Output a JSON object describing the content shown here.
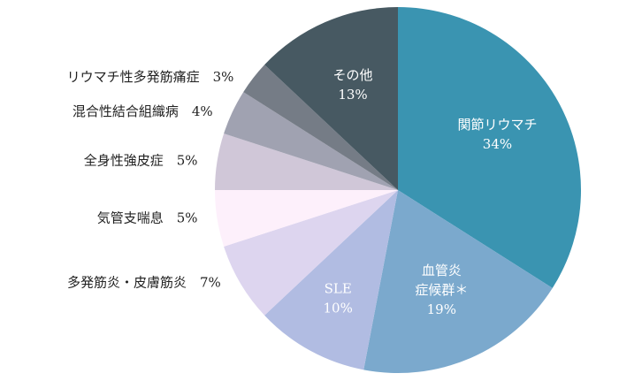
{
  "chart_data": {
    "type": "pie",
    "title": "",
    "slices": [
      {
        "name": "関節リウマチ",
        "name_lines": [
          "関節リウマチ"
        ],
        "value": 34,
        "label": "34%",
        "color": "#3a94b1",
        "position": "inside"
      },
      {
        "name": "血管炎症候群＊",
        "name_lines": [
          "血管炎",
          "症候群＊"
        ],
        "value": 19,
        "label": "19%",
        "color": "#7ba9cd",
        "position": "inside"
      },
      {
        "name": "SLE",
        "name_lines": [
          "SLE"
        ],
        "value": 10,
        "label": "10%",
        "color": "#b1bce2",
        "position": "inside"
      },
      {
        "name": "多発筋炎・皮膚筋炎",
        "name_lines": [
          "多発筋炎・皮膚筋炎"
        ],
        "value": 7,
        "label": "7%",
        "color": "#ddd5ef",
        "position": "outside"
      },
      {
        "name": "気管支喘息",
        "name_lines": [
          "気管支喘息"
        ],
        "value": 5,
        "label": "5%",
        "color": "#fdf0fb",
        "position": "outside"
      },
      {
        "name": "全身性強皮症",
        "name_lines": [
          "全身性強皮症"
        ],
        "value": 5,
        "label": "5%",
        "color": "#d0c7d8",
        "position": "outside"
      },
      {
        "name": "混合性結合組織病",
        "name_lines": [
          "混合性結合組織病"
        ],
        "value": 4,
        "label": "4%",
        "color": "#a0a2b1",
        "position": "outside"
      },
      {
        "name": "リウマチ性多発筋痛症",
        "name_lines": [
          "リウマチ性多発筋痛症"
        ],
        "value": 3,
        "label": "3%",
        "color": "#757c86",
        "position": "outside"
      },
      {
        "name": "その他",
        "name_lines": [
          "その他"
        ],
        "value": 13,
        "label": "13%",
        "color": "#475962",
        "position": "inside"
      }
    ]
  }
}
